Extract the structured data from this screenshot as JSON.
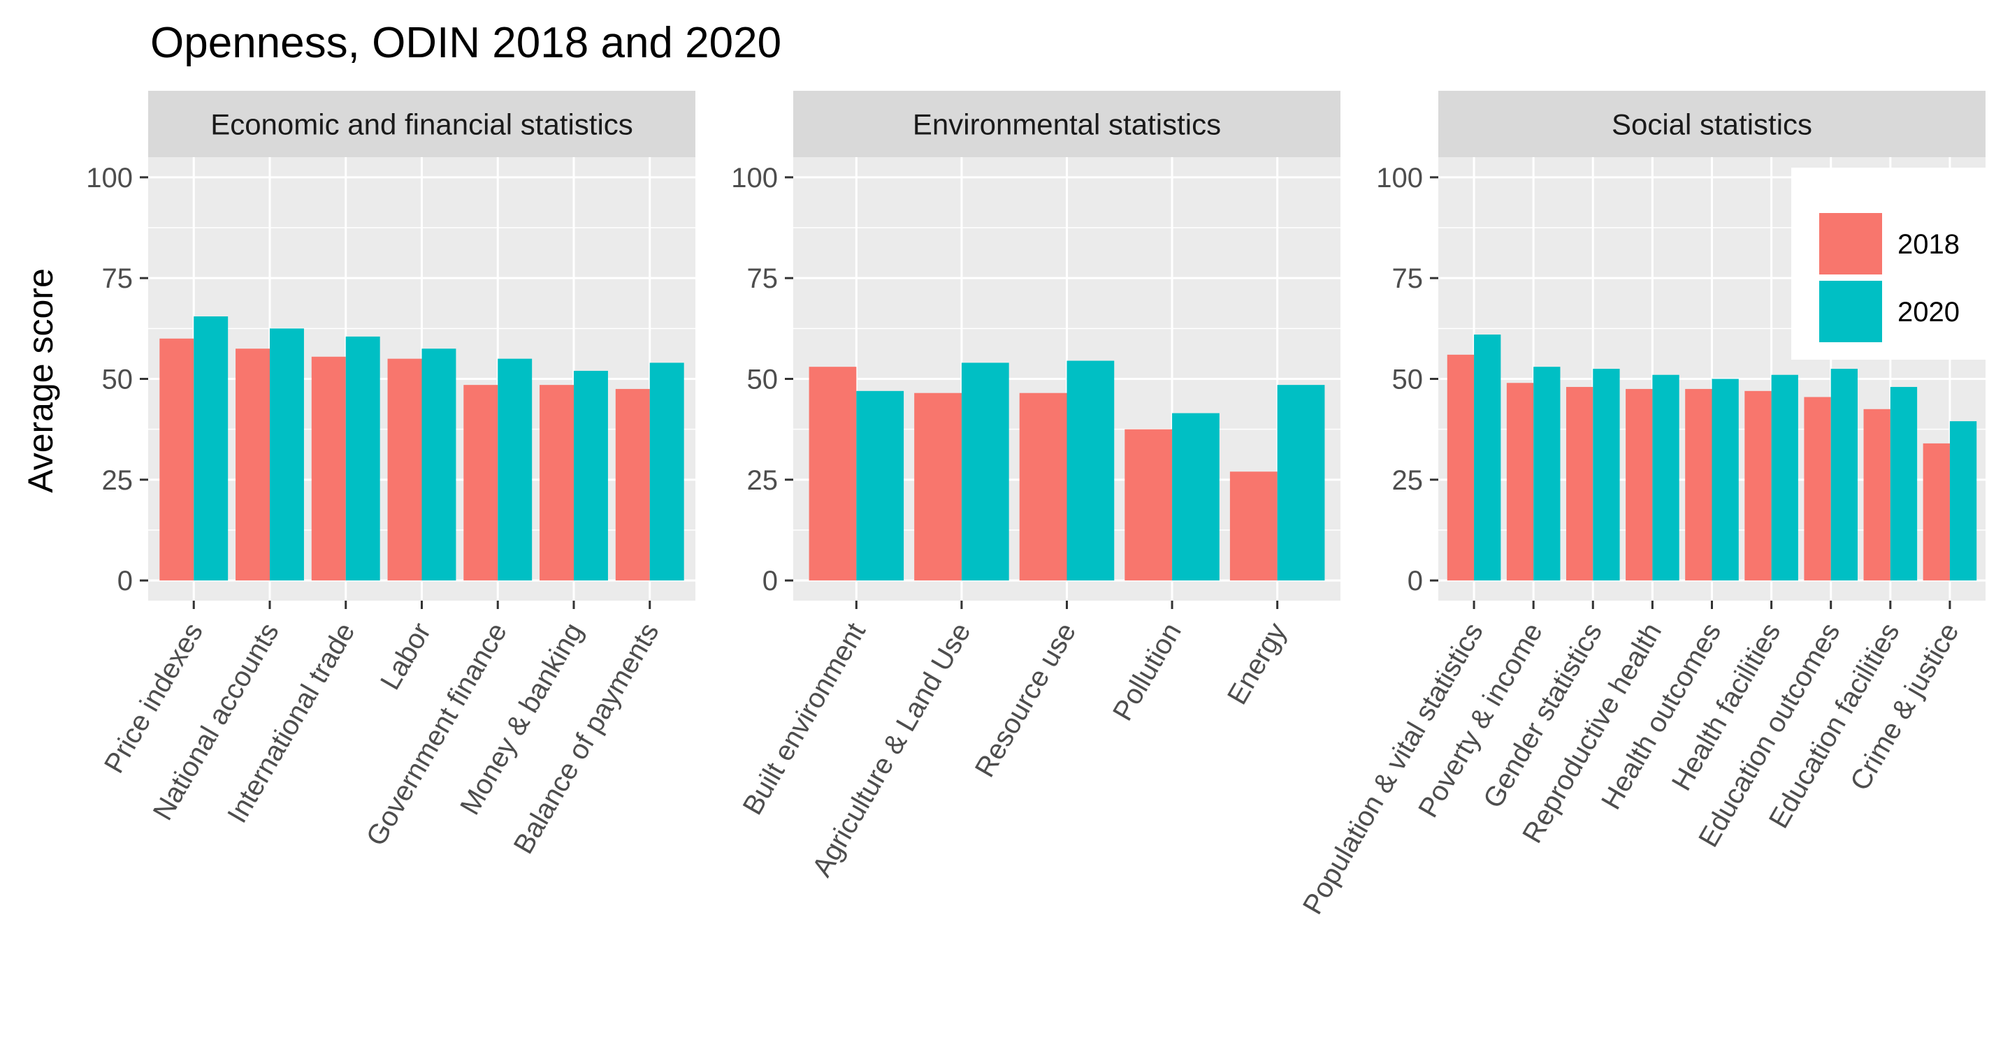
{
  "chart_data": {
    "type": "bar",
    "title": "Openness, ODIN 2018 and 2020",
    "ylabel": "Average score",
    "xlabel": "",
    "ylim": [
      -5,
      105
    ],
    "yticks": [
      0,
      25,
      50,
      75,
      100
    ],
    "grid": true,
    "legend_position": "top-right",
    "series": [
      {
        "name": "2018",
        "color": "#F8766D"
      },
      {
        "name": "2020",
        "color": "#00BFC4"
      }
    ],
    "panels": [
      {
        "strip": "Economic and financial statistics",
        "categories": [
          "Price indexes",
          "National accounts",
          "International trade",
          "Labor",
          "Government finance",
          "Money & banking",
          "Balance of payments"
        ],
        "values": {
          "2018": [
            60,
            57.5,
            55.5,
            55,
            48.5,
            48.5,
            47.5
          ],
          "2020": [
            65.5,
            62.5,
            60.5,
            57.5,
            55,
            52,
            54
          ]
        }
      },
      {
        "strip": "Environmental statistics",
        "categories": [
          "Built environment",
          "Agriculture & Land Use",
          "Resource use",
          "Pollution",
          "Energy"
        ],
        "values": {
          "2018": [
            53,
            46.5,
            46.5,
            37.5,
            27
          ],
          "2020": [
            47,
            54,
            54.5,
            41.5,
            48.5
          ]
        }
      },
      {
        "strip": "Social statistics",
        "categories": [
          "Population & vital statistics",
          "Poverty & income",
          "Gender statistics",
          "Reproductive health",
          "Health outcomes",
          "Health facilities",
          "Education outcomes",
          "Education facilities",
          "Crime & justice"
        ],
        "values": {
          "2018": [
            56,
            49,
            48,
            47.5,
            47.5,
            47,
            45.5,
            42.5,
            34
          ],
          "2020": [
            61,
            53,
            52.5,
            51,
            50,
            51,
            52.5,
            48,
            39.5
          ]
        }
      }
    ]
  }
}
